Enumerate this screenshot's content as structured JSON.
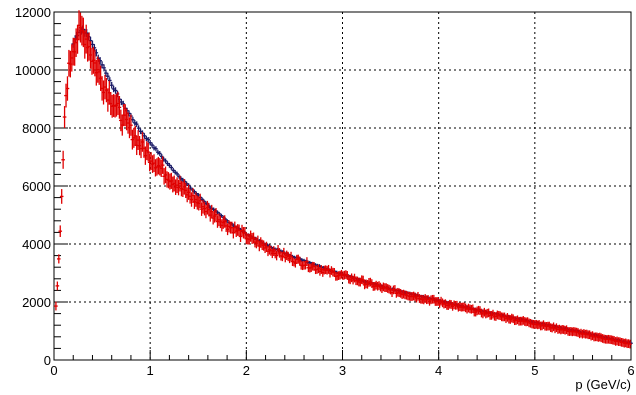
{
  "chart_data": {
    "type": "scatter",
    "title": "",
    "xlabel": "p (GeV/c)",
    "ylabel": "",
    "xlim": [
      0,
      6
    ],
    "ylim": [
      0,
      12000
    ],
    "x_ticks": [
      "0",
      "1",
      "2",
      "3",
      "4",
      "5",
      "6"
    ],
    "y_ticks": [
      "0",
      "2000",
      "4000",
      "6000",
      "8000",
      "10000",
      "12000"
    ],
    "grid": true,
    "grid_style": "dotted",
    "legend": "none",
    "series": [
      {
        "color": "#1a1a66",
        "marker": "error-bar",
        "x": [
          0.2,
          0.25,
          0.3,
          0.35,
          0.4,
          0.45,
          0.5,
          0.6,
          0.7,
          0.8,
          0.9,
          1.0,
          1.2,
          1.4,
          1.6,
          1.8,
          2.0,
          2.25,
          2.5,
          2.75,
          3.0,
          3.5,
          4.0,
          4.5,
          5.0,
          5.5,
          6.0
        ],
        "y": [
          10900,
          11300,
          11400,
          11200,
          10900,
          10500,
          10200,
          9500,
          8900,
          8400,
          7900,
          7500,
          6700,
          6000,
          5350,
          4800,
          4350,
          3900,
          3550,
          3250,
          2950,
          2450,
          2050,
          1650,
          1300,
          950,
          580
        ]
      },
      {
        "color": "#e00000",
        "marker": "error-bar",
        "x": [
          0.02,
          0.04,
          0.06,
          0.08,
          0.1,
          0.12,
          0.15,
          0.18,
          0.2,
          0.25,
          0.3,
          0.35,
          0.4,
          0.45,
          0.5,
          0.6,
          0.7,
          0.8,
          0.9,
          1.0,
          1.2,
          1.4,
          1.6,
          1.8,
          2.0,
          2.25,
          2.5,
          2.75,
          3.0,
          3.5,
          4.0,
          4.5,
          5.0,
          5.5,
          6.0
        ],
        "y": [
          1900,
          2800,
          4000,
          5500,
          7400,
          9000,
          9900,
          10500,
          10800,
          11200,
          11300,
          11000,
          10400,
          10000,
          9600,
          9000,
          8400,
          7900,
          7400,
          7000,
          6300,
          5700,
          5150,
          4650,
          4250,
          3800,
          3450,
          3150,
          2900,
          2400,
          2000,
          1600,
          1250,
          900,
          540
        ]
      }
    ]
  }
}
